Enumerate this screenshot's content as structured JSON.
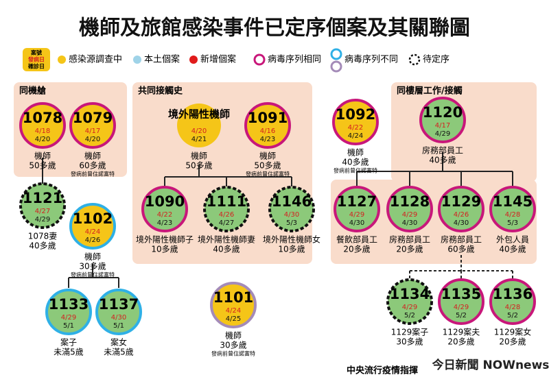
{
  "title": "機師及旅館感染事件已定序個案及其關聯圖",
  "legend": {
    "key": [
      "案號",
      "發病日",
      "確診日"
    ],
    "items": [
      "感染源調查中",
      "本土個案",
      "新增個案",
      "病毒序列相同",
      "病毒序列不同",
      "待定序"
    ]
  },
  "groups": [
    "同機艙",
    "共同接觸史",
    "同樓層工作/接觸"
  ],
  "nodes": [
    {
      "id": "1078",
      "onset": "4/18",
      "confirm": "4/20",
      "label": [
        "機師",
        "50多歲"
      ],
      "fill": "yellow",
      "ring": "same"
    },
    {
      "id": "1079",
      "onset": "4/17",
      "confirm": "4/20",
      "label": [
        "機師",
        "60多歲",
        "發病前曾住諾富特"
      ],
      "fill": "yellow",
      "ring": "same"
    },
    {
      "id": "境外陽性機師",
      "onset": "4/20",
      "confirm": "4/21",
      "label": [
        "機師",
        "50多歲"
      ],
      "fill": "yellow",
      "ring": "none"
    },
    {
      "id": "1091",
      "onset": "4/16",
      "confirm": "4/23",
      "label": [
        "機師",
        "50多歲",
        "發病前曾住諾富特"
      ],
      "fill": "yellow",
      "ring": "same"
    },
    {
      "id": "1092",
      "onset": "4/22",
      "confirm": "4/24",
      "label": [
        "機師",
        "40多歲",
        "發病前曾住諾富特"
      ],
      "fill": "yellow",
      "ring": "same"
    },
    {
      "id": "1120",
      "onset": "4/17",
      "confirm": "4/29",
      "label": [
        "房務部員工",
        "40多歲"
      ],
      "fill": "green",
      "ring": "same"
    },
    {
      "id": "1121",
      "onset": "4/27",
      "confirm": "4/29",
      "label": [
        "1078妻",
        "40多歲"
      ],
      "fill": "green",
      "ring": "pending"
    },
    {
      "id": "1102",
      "onset": "4/24",
      "confirm": "4/26",
      "label": [
        "機師",
        "30多歲",
        "發病前曾住諾富特"
      ],
      "fill": "yellow",
      "ring": "diff"
    },
    {
      "id": "1090",
      "onset": "4/22",
      "confirm": "4/23",
      "label": [
        "境外陽性機師子",
        "10多歲"
      ],
      "fill": "green",
      "ring": "same"
    },
    {
      "id": "1111",
      "onset": "4/26",
      "confirm": "4/27",
      "label": [
        "境外陽性機師妻",
        "40多歲"
      ],
      "fill": "green",
      "ring": "pending"
    },
    {
      "id": "1146",
      "onset": "4/30",
      "confirm": "5/3",
      "label": [
        "境外陽性機師女",
        "10多歲"
      ],
      "fill": "green",
      "ring": "pending"
    },
    {
      "id": "1127",
      "onset": "4/29",
      "confirm": "4/30",
      "label": [
        "餐飲部員工",
        "20多歲"
      ],
      "fill": "green",
      "ring": "same"
    },
    {
      "id": "1128",
      "onset": "4/29",
      "confirm": "4/30",
      "label": [
        "房務部員工",
        "20多歲"
      ],
      "fill": "green",
      "ring": "same"
    },
    {
      "id": "1129",
      "onset": "4/26",
      "confirm": "4/30",
      "label": [
        "房務部員工",
        "60多歲"
      ],
      "fill": "green",
      "ring": "same"
    },
    {
      "id": "1145",
      "onset": "4/28",
      "confirm": "5/3",
      "label": [
        "外包人員",
        "40多歲"
      ],
      "fill": "green",
      "ring": "same"
    },
    {
      "id": "1133",
      "onset": "4/29",
      "confirm": "5/1",
      "label": [
        "案子",
        "未滿5歲"
      ],
      "fill": "green",
      "ring": "diff"
    },
    {
      "id": "1137",
      "onset": "4/30",
      "confirm": "5/1",
      "label": [
        "案女",
        "未滿5歲"
      ],
      "fill": "green",
      "ring": "diff"
    },
    {
      "id": "1101",
      "onset": "4/24",
      "confirm": "4/25",
      "label": [
        "機師",
        "30多歲",
        "發病前曾住諾富特"
      ],
      "fill": "yellow",
      "ring": "diff2"
    },
    {
      "id": "1134",
      "onset": "4/29",
      "confirm": "5/2",
      "label": [
        "1129案子",
        "30多歲"
      ],
      "fill": "green",
      "ring": "pending"
    },
    {
      "id": "1135",
      "onset": "4/29",
      "confirm": "5/2",
      "label": [
        "1129案夫",
        "20多歲"
      ],
      "fill": "green",
      "ring": "same"
    },
    {
      "id": "1136",
      "onset": "4/28",
      "confirm": "5/2",
      "label": [
        "1129案女",
        "20多歲"
      ],
      "fill": "green",
      "ring": "same"
    }
  ],
  "source": "中央流行疫情指揮",
  "watermark": "今日新聞 NOWnews"
}
